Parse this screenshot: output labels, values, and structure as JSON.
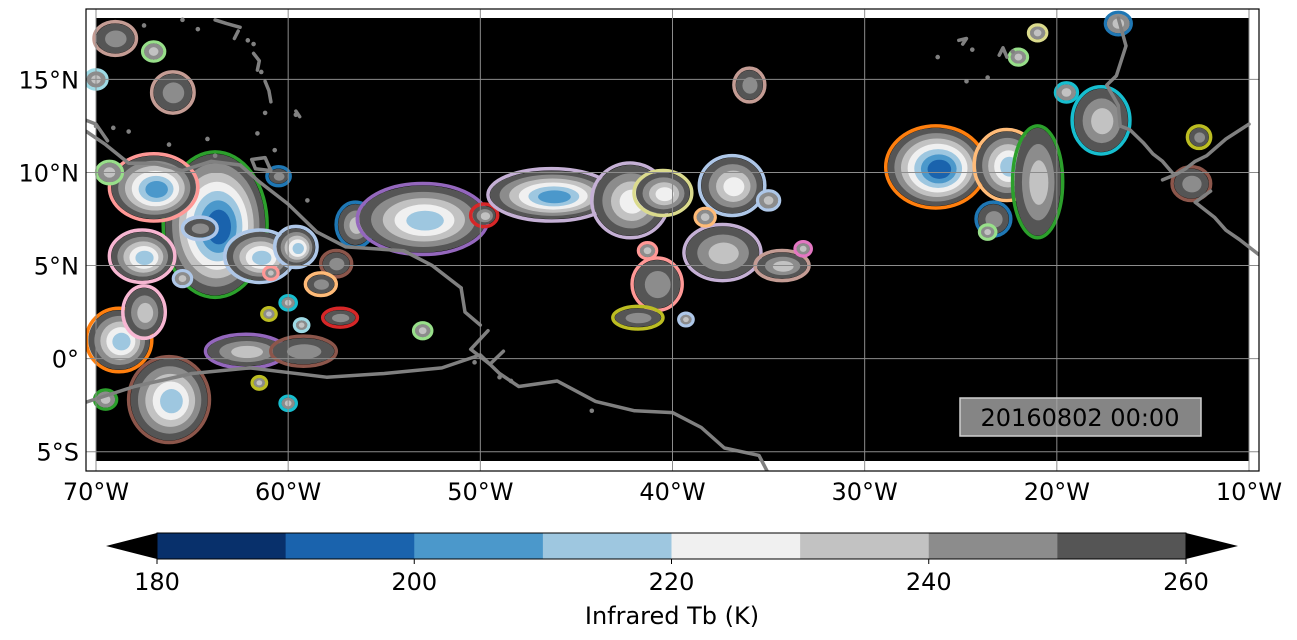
{
  "map": {
    "lon_range": [
      -70,
      -10
    ],
    "lat_range": [
      -5.5,
      18.3
    ],
    "grid": true,
    "background_color": "#000000",
    "coastline_color": "#808080",
    "lon_ticks": [
      {
        "value": -70,
        "label": "70°W"
      },
      {
        "value": -60,
        "label": "60°W"
      },
      {
        "value": -50,
        "label": "50°W"
      },
      {
        "value": -40,
        "label": "40°W"
      },
      {
        "value": -30,
        "label": "30°W"
      },
      {
        "value": -20,
        "label": "20°W"
      },
      {
        "value": -10,
        "label": "10°W"
      }
    ],
    "lat_ticks": [
      {
        "value": 15,
        "label": "15°N"
      },
      {
        "value": 10,
        "label": "10°N"
      },
      {
        "value": 5,
        "label": "5°N"
      },
      {
        "value": 0,
        "label": "0°"
      },
      {
        "value": -5,
        "label": "5°S"
      }
    ],
    "timestamp": "20160802 00:00",
    "cloud_systems": [
      {
        "lon": -63.8,
        "lat": 7.2,
        "rx": 2.6,
        "ry": 3.8,
        "min_tb": 195,
        "outline": "#2ca02c"
      },
      {
        "lon": -67.0,
        "lat": 9.2,
        "rx": 2.2,
        "ry": 1.7,
        "min_tb": 205,
        "outline": "#ff9896"
      },
      {
        "lon": -67.6,
        "lat": 5.5,
        "rx": 1.6,
        "ry": 1.3,
        "min_tb": 215,
        "outline": "#f7b6d2"
      },
      {
        "lon": -61.5,
        "lat": 5.5,
        "rx": 1.7,
        "ry": 1.3,
        "min_tb": 215,
        "outline": "#aec7e8"
      },
      {
        "lon": -59.6,
        "lat": 6.0,
        "rx": 1.0,
        "ry": 1.0,
        "min_tb": 215,
        "outline": "#aec7e8"
      },
      {
        "lon": -56.5,
        "lat": 7.2,
        "rx": 0.9,
        "ry": 1.1,
        "min_tb": 235,
        "outline": "#1f77b4"
      },
      {
        "lon": -53.0,
        "lat": 7.5,
        "rx": 3.3,
        "ry": 1.8,
        "min_tb": 210,
        "outline": "#9467bd"
      },
      {
        "lon": -49.8,
        "lat": 7.7,
        "rx": 0.6,
        "ry": 0.5,
        "min_tb": 235,
        "outline": "#d62728"
      },
      {
        "lon": -46.3,
        "lat": 8.8,
        "rx": 3.2,
        "ry": 1.3,
        "min_tb": 205,
        "outline": "#c5b0d5"
      },
      {
        "lon": -42.2,
        "lat": 8.5,
        "rx": 1.9,
        "ry": 1.9,
        "min_tb": 220,
        "outline": "#c5b0d5"
      },
      {
        "lon": -40.5,
        "lat": 8.9,
        "rx": 1.4,
        "ry": 1.1,
        "min_tb": 225,
        "outline": "#dbdb8d"
      },
      {
        "lon": -36.9,
        "lat": 9.3,
        "rx": 1.6,
        "ry": 1.5,
        "min_tb": 225,
        "outline": "#aec7e8"
      },
      {
        "lon": -37.4,
        "lat": 5.7,
        "rx": 1.9,
        "ry": 1.4,
        "min_tb": 230,
        "outline": "#c5b0d5"
      },
      {
        "lon": -34.3,
        "lat": 5.0,
        "rx": 1.3,
        "ry": 0.7,
        "min_tb": 235,
        "outline": "#c49c94"
      },
      {
        "lon": -40.8,
        "lat": 4.0,
        "rx": 1.2,
        "ry": 1.3,
        "min_tb": 240,
        "outline": "#ff9896"
      },
      {
        "lon": -41.8,
        "lat": 2.2,
        "rx": 1.2,
        "ry": 0.5,
        "min_tb": 240,
        "outline": "#bcbd22"
      },
      {
        "lon": -26.3,
        "lat": 10.3,
        "rx": 2.5,
        "ry": 2.1,
        "min_tb": 190,
        "outline": "#ff7f0e"
      },
      {
        "lon": -22.6,
        "lat": 10.4,
        "rx": 1.6,
        "ry": 1.8,
        "min_tb": 212,
        "outline": "#ffbb78"
      },
      {
        "lon": -21.0,
        "lat": 9.5,
        "rx": 1.2,
        "ry": 2.9,
        "min_tb": 230,
        "outline": "#2ca02c"
      },
      {
        "lon": -17.7,
        "lat": 12.8,
        "rx": 1.4,
        "ry": 1.7,
        "min_tb": 235,
        "outline": "#17becf"
      },
      {
        "lon": -13.0,
        "lat": 9.4,
        "rx": 0.9,
        "ry": 0.8,
        "min_tb": 245,
        "outline": "#8c564b"
      },
      {
        "lon": -12.6,
        "lat": 11.9,
        "rx": 0.5,
        "ry": 0.5,
        "min_tb": 245,
        "outline": "#bcbd22"
      },
      {
        "lon": -23.3,
        "lat": 7.5,
        "rx": 0.8,
        "ry": 0.8,
        "min_tb": 240,
        "outline": "#1f77b4"
      },
      {
        "lon": -68.8,
        "lat": 1.0,
        "rx": 1.6,
        "ry": 1.6,
        "min_tb": 215,
        "outline": "#ff7f0e"
      },
      {
        "lon": -66.2,
        "lat": -2.2,
        "rx": 2.0,
        "ry": 2.2,
        "min_tb": 210,
        "outline": "#8c564b"
      },
      {
        "lon": -67.5,
        "lat": 2.5,
        "rx": 1.0,
        "ry": 1.3,
        "min_tb": 230,
        "outline": "#f7b6d2"
      },
      {
        "lon": -62.2,
        "lat": 0.4,
        "rx": 2.0,
        "ry": 0.8,
        "min_tb": 230,
        "outline": "#9467bd"
      },
      {
        "lon": -59.2,
        "lat": 0.4,
        "rx": 1.6,
        "ry": 0.7,
        "min_tb": 240,
        "outline": "#8c564b"
      },
      {
        "lon": -66.0,
        "lat": 14.3,
        "rx": 1.0,
        "ry": 1.0,
        "min_tb": 240,
        "outline": "#c49c94"
      },
      {
        "lon": -69.0,
        "lat": 17.2,
        "rx": 1.0,
        "ry": 0.8,
        "min_tb": 240,
        "outline": "#c49c94"
      },
      {
        "lon": -36.0,
        "lat": 14.7,
        "rx": 0.7,
        "ry": 0.8,
        "min_tb": 240,
        "outline": "#c49c94"
      },
      {
        "lon": -60.5,
        "lat": 9.8,
        "rx": 0.5,
        "ry": 0.4,
        "min_tb": 245,
        "outline": "#1f77b4"
      },
      {
        "lon": -57.5,
        "lat": 5.1,
        "rx": 0.7,
        "ry": 0.6,
        "min_tb": 245,
        "outline": "#8c564b"
      },
      {
        "lon": -57.3,
        "lat": 2.2,
        "rx": 0.8,
        "ry": 0.4,
        "min_tb": 245,
        "outline": "#d62728"
      },
      {
        "lon": -58.3,
        "lat": 4.0,
        "rx": 0.7,
        "ry": 0.5,
        "min_tb": 245,
        "outline": "#ffbb78"
      },
      {
        "lon": -64.6,
        "lat": 7.0,
        "rx": 0.8,
        "ry": 0.5,
        "min_tb": 240,
        "outline": "#aec7e8"
      }
    ],
    "small_cells": [
      {
        "lon": -67.0,
        "lat": 16.5,
        "r": 0.5,
        "outline": "#98df8a"
      },
      {
        "lon": -69.3,
        "lat": 10.0,
        "r": 0.6,
        "outline": "#98df8a"
      },
      {
        "lon": -61.0,
        "lat": 2.4,
        "r": 0.3,
        "outline": "#bcbd22"
      },
      {
        "lon": -60.0,
        "lat": 3.0,
        "r": 0.35,
        "outline": "#17becf"
      },
      {
        "lon": -59.3,
        "lat": 1.8,
        "r": 0.3,
        "outline": "#9edae5"
      },
      {
        "lon": -60.0,
        "lat": -2.4,
        "r": 0.35,
        "outline": "#17becf"
      },
      {
        "lon": -61.5,
        "lat": -1.3,
        "r": 0.3,
        "outline": "#bcbd22"
      },
      {
        "lon": -53.0,
        "lat": 1.5,
        "r": 0.4,
        "outline": "#98df8a"
      },
      {
        "lon": -60.9,
        "lat": 4.6,
        "r": 0.3,
        "outline": "#ff9896"
      },
      {
        "lon": -65.5,
        "lat": 4.3,
        "r": 0.4,
        "outline": "#aec7e8"
      },
      {
        "lon": -33.2,
        "lat": 5.9,
        "r": 0.35,
        "outline": "#e377c2"
      },
      {
        "lon": -38.3,
        "lat": 7.6,
        "r": 0.45,
        "outline": "#ffbb78"
      },
      {
        "lon": -35.0,
        "lat": 8.5,
        "r": 0.5,
        "outline": "#aec7e8"
      },
      {
        "lon": -39.3,
        "lat": 2.1,
        "r": 0.3,
        "outline": "#aec7e8"
      },
      {
        "lon": -41.3,
        "lat": 5.8,
        "r": 0.4,
        "outline": "#ff9896"
      },
      {
        "lon": -22.0,
        "lat": 16.2,
        "r": 0.4,
        "outline": "#98df8a"
      },
      {
        "lon": -21.0,
        "lat": 17.5,
        "r": 0.4,
        "outline": "#dbdb8d"
      },
      {
        "lon": -16.8,
        "lat": 18.0,
        "r": 0.6,
        "outline": "#1f77b4"
      },
      {
        "lon": -19.5,
        "lat": 14.3,
        "r": 0.5,
        "outline": "#17becf"
      },
      {
        "lon": -23.6,
        "lat": 6.8,
        "r": 0.35,
        "outline": "#98df8a"
      },
      {
        "lon": -70.0,
        "lat": 15.0,
        "r": 0.5,
        "outline": "#9edae5"
      },
      {
        "lon": -69.5,
        "lat": -2.2,
        "r": 0.5,
        "outline": "#2ca02c"
      }
    ]
  },
  "colorbar": {
    "title": "Infrared Tb (K)",
    "range": [
      180,
      260
    ],
    "bins": [
      {
        "from": 180,
        "to": 190,
        "color": "#08306b"
      },
      {
        "from": 190,
        "to": 200,
        "color": "#1a63ad"
      },
      {
        "from": 200,
        "to": 210,
        "color": "#4b98cb"
      },
      {
        "from": 210,
        "to": 220,
        "color": "#9ec7e0"
      },
      {
        "from": 220,
        "to": 230,
        "color": "#f0f0f0"
      },
      {
        "from": 230,
        "to": 240,
        "color": "#c2c2c2"
      },
      {
        "from": 240,
        "to": 250,
        "color": "#8c8c8c"
      },
      {
        "from": 250,
        "to": 260,
        "color": "#555555"
      }
    ],
    "under_color": "#000000",
    "over_color": "#000000",
    "ticks": [
      {
        "value": 180,
        "label": "180"
      },
      {
        "value": 200,
        "label": "200"
      },
      {
        "value": 220,
        "label": "220"
      },
      {
        "value": 240,
        "label": "240"
      },
      {
        "value": 260,
        "label": "260"
      }
    ]
  }
}
